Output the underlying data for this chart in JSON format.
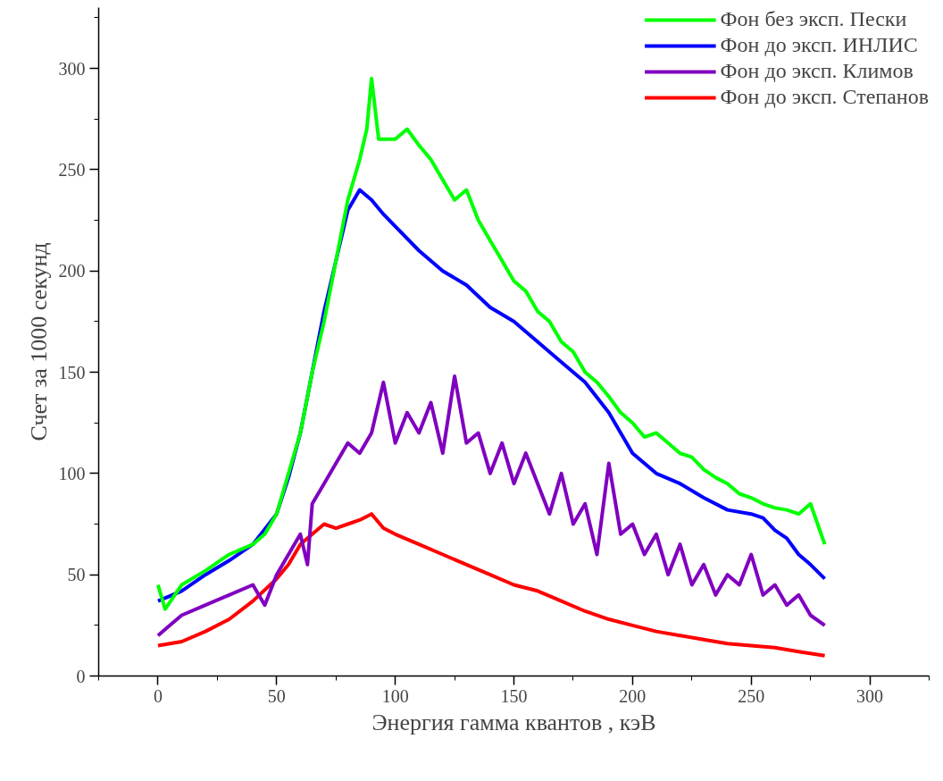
{
  "chart_data": {
    "type": "line",
    "xlabel": "Энергия гамма квантов , кэВ",
    "ylabel": "Счет за 1000 секунд",
    "xlim": [
      -25,
      325
    ],
    "ylim": [
      0,
      330
    ],
    "xticks": [
      0,
      50,
      100,
      150,
      200,
      250,
      300
    ],
    "yticks": [
      0,
      50,
      100,
      150,
      200,
      250,
      300
    ],
    "grid": false,
    "legend": "top right",
    "line_style": "solid",
    "marker": "none",
    "series": [
      {
        "name": "Фон без эксп. Пески",
        "color": "#00ff00",
        "x": [
          0,
          3,
          10,
          20,
          30,
          40,
          45,
          50,
          55,
          60,
          65,
          70,
          75,
          80,
          85,
          88,
          90,
          93,
          100,
          105,
          110,
          115,
          120,
          125,
          130,
          135,
          140,
          145,
          150,
          155,
          160,
          165,
          170,
          175,
          180,
          185,
          190,
          195,
          200,
          205,
          210,
          215,
          220,
          225,
          230,
          235,
          240,
          245,
          250,
          255,
          260,
          265,
          270,
          275,
          278,
          281
        ],
        "values": [
          45,
          33,
          45,
          52,
          60,
          65,
          70,
          80,
          100,
          120,
          150,
          175,
          205,
          235,
          255,
          270,
          295,
          265,
          265,
          270,
          262,
          255,
          245,
          235,
          240,
          225,
          215,
          205,
          195,
          190,
          180,
          175,
          165,
          160,
          150,
          145,
          138,
          130,
          125,
          118,
          120,
          115,
          110,
          108,
          102,
          98,
          95,
          90,
          88,
          85,
          83,
          82,
          80,
          85,
          75,
          65
        ]
      },
      {
        "name": "Фон до эксп. ИНЛИС",
        "color": "#0000ff",
        "x": [
          0,
          10,
          20,
          30,
          40,
          50,
          55,
          60,
          65,
          70,
          75,
          80,
          85,
          90,
          95,
          100,
          110,
          120,
          130,
          140,
          150,
          160,
          170,
          180,
          190,
          200,
          210,
          220,
          230,
          240,
          250,
          255,
          260,
          265,
          270,
          275,
          281
        ],
        "values": [
          37,
          42,
          50,
          57,
          65,
          80,
          98,
          120,
          150,
          180,
          205,
          230,
          240,
          235,
          228,
          222,
          210,
          200,
          193,
          182,
          175,
          165,
          155,
          145,
          130,
          110,
          100,
          95,
          88,
          82,
          80,
          78,
          72,
          68,
          60,
          55,
          48
        ]
      },
      {
        "name": "Фон до эксп. Климов",
        "color": "#8000c0",
        "x": [
          0,
          5,
          10,
          20,
          30,
          40,
          45,
          50,
          55,
          60,
          63,
          65,
          70,
          75,
          80,
          85,
          90,
          95,
          100,
          105,
          110,
          115,
          120,
          125,
          130,
          135,
          140,
          145,
          150,
          155,
          160,
          165,
          170,
          175,
          180,
          185,
          190,
          195,
          200,
          205,
          210,
          215,
          220,
          225,
          230,
          235,
          240,
          245,
          250,
          255,
          260,
          265,
          270,
          275,
          281
        ],
        "values": [
          20,
          25,
          30,
          35,
          40,
          45,
          35,
          50,
          60,
          70,
          55,
          85,
          95,
          105,
          115,
          110,
          120,
          145,
          115,
          130,
          120,
          135,
          110,
          148,
          115,
          120,
          100,
          115,
          95,
          110,
          95,
          80,
          100,
          75,
          85,
          60,
          105,
          70,
          75,
          60,
          70,
          50,
          65,
          45,
          55,
          40,
          50,
          45,
          60,
          40,
          45,
          35,
          40,
          30,
          25
        ]
      },
      {
        "name": "Фон до эксп. Степанов",
        "color": "#ff0000",
        "x": [
          0,
          10,
          20,
          30,
          40,
          50,
          55,
          60,
          65,
          70,
          75,
          80,
          85,
          90,
          95,
          100,
          110,
          120,
          130,
          140,
          150,
          160,
          170,
          180,
          190,
          200,
          210,
          220,
          230,
          240,
          250,
          260,
          270,
          281
        ],
        "values": [
          15,
          17,
          22,
          28,
          37,
          48,
          55,
          65,
          70,
          75,
          73,
          75,
          77,
          80,
          73,
          70,
          65,
          60,
          55,
          50,
          45,
          42,
          37,
          32,
          28,
          25,
          22,
          20,
          18,
          16,
          15,
          14,
          12,
          10
        ]
      }
    ]
  }
}
